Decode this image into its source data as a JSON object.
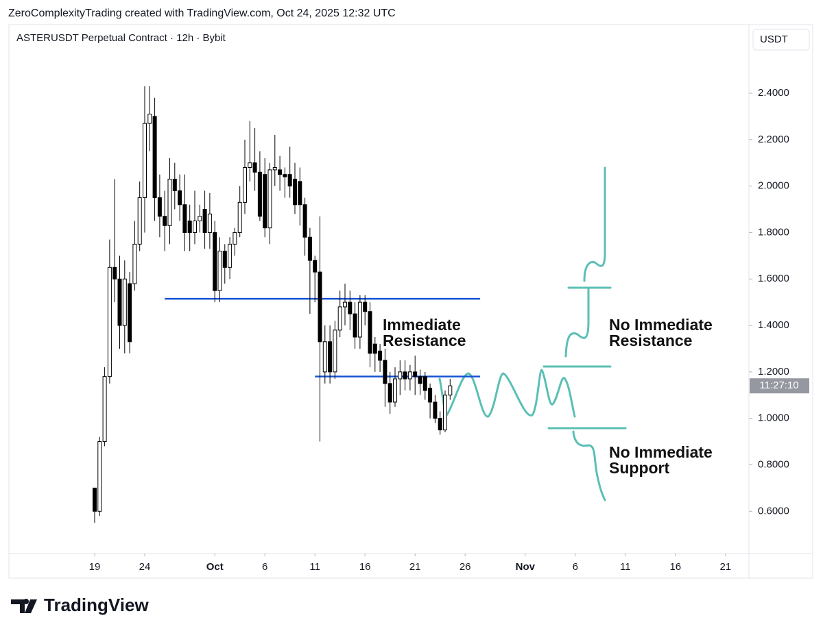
{
  "header": "ZeroComplexityTrading created with TradingView.com, Oct 24, 2025 12:32 UTC",
  "logo": "TradingView",
  "chart_data": {
    "type": "candlestick",
    "title": "ASTERUSDT Perpetual Contract · 12h · Bybit",
    "currency": "USDT",
    "countdown": "11:27:10",
    "up_color": "#ffffff",
    "down_color": "#000000",
    "x": [
      "2025-09-19T00:00",
      "2025-09-19T12:00",
      "2025-09-20T00:00",
      "2025-09-20T12:00",
      "2025-09-21T00:00",
      "2025-09-21T12:00",
      "2025-09-22T00:00",
      "2025-09-22T12:00",
      "2025-09-23T00:00",
      "2025-09-23T12:00",
      "2025-09-24T00:00",
      "2025-09-24T12:00",
      "2025-09-25T00:00",
      "2025-09-25T12:00",
      "2025-09-26T00:00",
      "2025-09-26T12:00",
      "2025-09-27T00:00",
      "2025-09-27T12:00",
      "2025-09-28T00:00",
      "2025-09-28T12:00",
      "2025-09-29T00:00",
      "2025-09-29T12:00",
      "2025-09-30T00:00",
      "2025-09-30T12:00",
      "2025-10-01T00:00",
      "2025-10-01T12:00",
      "2025-10-02T00:00",
      "2025-10-02T12:00",
      "2025-10-03T00:00",
      "2025-10-03T12:00",
      "2025-10-04T00:00",
      "2025-10-04T12:00",
      "2025-10-05T00:00",
      "2025-10-05T12:00",
      "2025-10-06T00:00",
      "2025-10-06T12:00",
      "2025-10-07T00:00",
      "2025-10-07T12:00",
      "2025-10-08T00:00",
      "2025-10-08T12:00",
      "2025-10-09T00:00",
      "2025-10-09T12:00",
      "2025-10-10T00:00",
      "2025-10-10T12:00",
      "2025-10-11T00:00",
      "2025-10-11T12:00",
      "2025-10-12T00:00",
      "2025-10-12T12:00",
      "2025-10-13T00:00",
      "2025-10-13T12:00",
      "2025-10-14T00:00",
      "2025-10-14T12:00",
      "2025-10-15T00:00",
      "2025-10-15T12:00",
      "2025-10-16T00:00",
      "2025-10-16T12:00",
      "2025-10-17T00:00",
      "2025-10-17T12:00",
      "2025-10-18T00:00",
      "2025-10-18T12:00",
      "2025-10-19T00:00",
      "2025-10-19T12:00",
      "2025-10-20T00:00",
      "2025-10-20T12:00",
      "2025-10-21T00:00",
      "2025-10-21T12:00",
      "2025-10-22T00:00",
      "2025-10-22T12:00",
      "2025-10-23T00:00",
      "2025-10-23T12:00",
      "2025-10-24T00:00",
      "2025-10-24T12:00"
    ],
    "open": [
      0.7,
      0.6,
      0.9,
      1.18,
      1.65,
      1.6,
      1.4,
      1.58,
      1.58,
      1.75,
      1.95,
      2.27,
      2.3,
      1.95,
      1.87,
      1.83,
      2.03,
      1.98,
      1.92,
      1.85,
      1.8,
      1.85,
      1.9,
      1.8,
      1.8,
      1.55,
      1.72,
      1.65,
      1.75,
      1.8,
      1.93,
      2.08,
      2.1,
      2.06,
      2.05,
      1.82,
      2.07,
      2.07,
      2.05,
      2.05,
      2.03,
      2.02,
      1.92,
      1.78,
      1.68,
      1.63,
      1.2,
      1.33,
      1.2,
      1.38,
      1.48,
      1.5,
      1.45,
      1.35,
      1.5,
      1.46,
      1.32,
      1.29,
      1.25,
      1.15,
      1.07,
      1.17,
      1.2,
      1.17,
      1.2,
      1.18,
      1.18,
      1.13,
      1.07,
      1.0,
      0.95,
      1.1
    ],
    "high": [
      0.7,
      0.92,
      1.22,
      1.77,
      2.03,
      1.7,
      1.68,
      1.63,
      1.85,
      2.02,
      2.43,
      2.43,
      2.38,
      2.05,
      1.98,
      2.12,
      2.1,
      2.05,
      2.05,
      1.92,
      1.98,
      1.92,
      1.98,
      1.97,
      1.85,
      1.78,
      1.75,
      1.78,
      1.82,
      2.0,
      2.2,
      2.28,
      2.25,
      2.15,
      2.12,
      2.1,
      2.22,
      2.13,
      2.08,
      2.17,
      2.1,
      2.08,
      1.95,
      1.82,
      1.7,
      1.87,
      1.4,
      1.4,
      1.42,
      1.55,
      1.58,
      1.55,
      1.5,
      1.53,
      1.53,
      1.5,
      1.35,
      1.32,
      1.3,
      1.2,
      1.22,
      1.25,
      1.25,
      1.23,
      1.27,
      1.21,
      1.2,
      1.15,
      1.1,
      1.03,
      1.12,
      1.17
    ],
    "low": [
      0.55,
      0.58,
      0.88,
      1.15,
      1.5,
      1.3,
      1.28,
      1.28,
      1.55,
      1.72,
      1.8,
      2.15,
      1.85,
      1.78,
      1.72,
      1.75,
      1.9,
      1.85,
      1.72,
      1.72,
      1.75,
      1.8,
      1.73,
      1.73,
      1.5,
      1.5,
      1.58,
      1.6,
      1.7,
      1.78,
      1.88,
      2.02,
      1.98,
      1.85,
      1.78,
      1.75,
      2.0,
      1.98,
      1.95,
      1.95,
      1.88,
      1.83,
      1.7,
      1.45,
      1.5,
      0.9,
      1.15,
      1.15,
      1.17,
      1.35,
      1.4,
      1.38,
      1.3,
      1.3,
      1.4,
      1.22,
      1.2,
      1.2,
      1.05,
      1.02,
      1.05,
      1.1,
      1.12,
      1.12,
      1.1,
      1.1,
      1.08,
      1.0,
      0.98,
      0.93,
      0.94,
      1.08
    ],
    "close": [
      0.6,
      0.9,
      1.18,
      1.65,
      1.6,
      1.4,
      1.6,
      1.33,
      1.75,
      1.95,
      2.27,
      2.31,
      1.95,
      1.87,
      1.83,
      2.03,
      1.98,
      1.92,
      1.8,
      1.8,
      1.85,
      1.87,
      1.8,
      1.88,
      1.55,
      1.72,
      1.65,
      1.75,
      1.8,
      1.93,
      2.08,
      2.1,
      2.06,
      1.87,
      1.82,
      2.07,
      2.08,
      2.05,
      2.04,
      2.0,
      1.92,
      1.92,
      1.78,
      1.68,
      1.63,
      1.33,
      1.33,
      1.2,
      1.38,
      1.48,
      1.5,
      1.45,
      1.35,
      1.5,
      1.46,
      1.28,
      1.28,
      1.25,
      1.15,
      1.07,
      1.17,
      1.2,
      1.17,
      1.2,
      1.18,
      1.15,
      1.12,
      1.07,
      1.0,
      0.95,
      1.1,
      1.14
    ],
    "levels": [
      {
        "value": 1.515,
        "start": "2025-09-26T00:00",
        "end": "2025-10-27T12:00"
      },
      {
        "value": 1.18,
        "start": "2025-10-11T00:00",
        "end": "2025-10-27T12:00"
      }
    ],
    "level_color": "#1652d4",
    "annotations": [
      {
        "lines": [
          "Immediate",
          "Resistance"
        ]
      },
      {
        "lines": [
          "No Immediate",
          "Resistance"
        ]
      },
      {
        "lines": [
          "No Immediate",
          "Support"
        ]
      }
    ],
    "ylim": [
      0.418,
      2.695
    ],
    "yticks": [
      {
        "value": 0.6,
        "label": "0.6000"
      },
      {
        "value": 0.8,
        "label": "0.8000"
      },
      {
        "value": 1.0,
        "label": "1.0000"
      },
      {
        "value": 1.2,
        "label": "1.2000"
      },
      {
        "value": 1.4,
        "label": "1.4000"
      },
      {
        "value": 1.6,
        "label": "1.6000"
      },
      {
        "value": 1.8,
        "label": "1.8000"
      },
      {
        "value": 2.0,
        "label": "2.0000"
      },
      {
        "value": 2.2,
        "label": "2.2000"
      },
      {
        "value": 2.4,
        "label": "2.4000"
      }
    ],
    "xticks": [
      {
        "value": "2025-09-19T00:00",
        "label": "19"
      },
      {
        "value": "2025-09-24T00:00",
        "label": "24"
      },
      {
        "value": "2025-10-01T00:00",
        "label": "Oct"
      },
      {
        "value": "2025-10-06T00:00",
        "label": "6"
      },
      {
        "value": "2025-10-11T00:00",
        "label": "11"
      },
      {
        "value": "2025-10-16T00:00",
        "label": "16"
      },
      {
        "value": "2025-10-21T00:00",
        "label": "21"
      },
      {
        "value": "2025-10-26T00:00",
        "label": "26"
      },
      {
        "value": "2025-11-01T00:00",
        "label": "Nov"
      },
      {
        "value": "2025-11-06T00:00",
        "label": "6"
      },
      {
        "value": "2025-11-11T00:00",
        "label": "11"
      },
      {
        "value": "2025-11-16T00:00",
        "label": "16"
      },
      {
        "value": "2025-11-21T00:00",
        "label": "21"
      }
    ]
  }
}
